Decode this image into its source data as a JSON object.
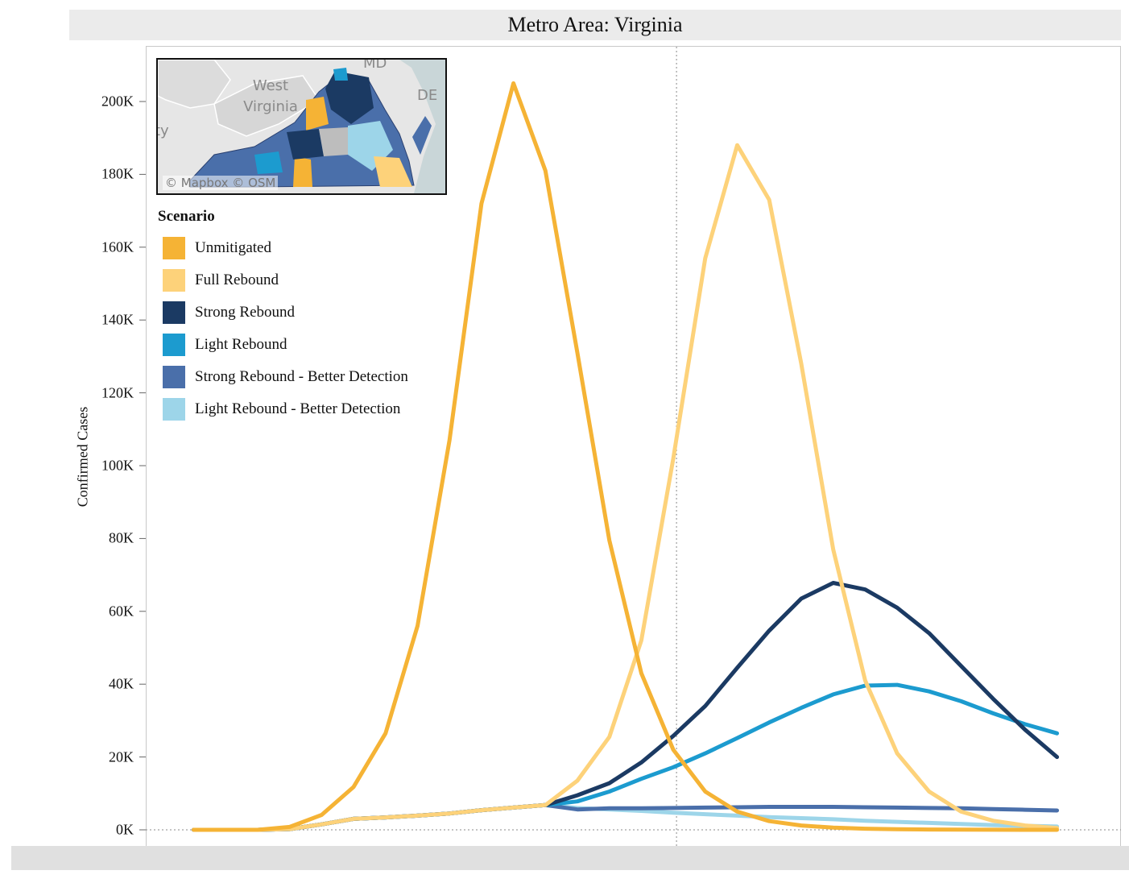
{
  "title": "Metro Area: Virginia",
  "map": {
    "credit": "© Mapbox  © OSM",
    "labels": {
      "md": "MD",
      "de": "DE",
      "wv": "West Virginia",
      "fragment": "ty"
    }
  },
  "legend": {
    "title": "Scenario",
    "items": [
      {
        "label": "Unmitigated",
        "color": "#F5B335"
      },
      {
        "label": "Full Rebound",
        "color": "#FDD27A"
      },
      {
        "label": "Strong Rebound",
        "color": "#1B3A63"
      },
      {
        "label": "Light Rebound",
        "color": "#1C9BCF"
      },
      {
        "label": "Strong Rebound - Better Detection",
        "color": "#4A6FAA"
      },
      {
        "label": "Light Rebound - Better Detection",
        "color": "#9DD5E9"
      }
    ]
  },
  "chart_data": {
    "type": "line",
    "title": "Metro Area: Virginia",
    "xlabel": "",
    "ylabel": "Confirmed Cases",
    "ylim": [
      0,
      215000
    ],
    "yticks": [
      {
        "value": 0,
        "label": "0K"
      },
      {
        "value": 20000,
        "label": "20K"
      },
      {
        "value": 40000,
        "label": "40K"
      },
      {
        "value": 60000,
        "label": "60K"
      },
      {
        "value": 80000,
        "label": "80K"
      },
      {
        "value": 100000,
        "label": "100K"
      },
      {
        "value": 120000,
        "label": "120K"
      },
      {
        "value": 140000,
        "label": "140K"
      },
      {
        "value": 160000,
        "label": "160K"
      },
      {
        "value": 180000,
        "label": "180K"
      },
      {
        "value": 200000,
        "label": "200K"
      }
    ],
    "x": [
      0,
      1,
      2,
      3,
      4,
      5,
      6,
      7,
      8,
      9,
      10,
      11,
      12,
      13,
      14,
      15,
      16,
      17,
      18,
      19,
      20,
      21,
      22,
      23,
      24,
      25,
      26,
      27
    ],
    "xlim": [
      -1.5,
      29
    ],
    "reference_line_x": 15.1,
    "series": [
      {
        "name": "Light Rebound - Better Detection",
        "color": "#9DD5E9",
        "values": [
          0,
          0,
          0,
          200,
          1500,
          3000,
          3400,
          3900,
          4500,
          5400,
          6100,
          6800,
          6000,
          5600,
          5200,
          4700,
          4300,
          3900,
          3500,
          3200,
          2900,
          2500,
          2200,
          1900,
          1600,
          1300,
          1100,
          900
        ]
      },
      {
        "name": "Strong Rebound - Better Detection",
        "color": "#4A6FAA",
        "values": [
          0,
          0,
          0,
          200,
          1500,
          3000,
          3400,
          3900,
          4500,
          5400,
          6100,
          6800,
          5600,
          5900,
          5900,
          6000,
          6100,
          6200,
          6300,
          6300,
          6300,
          6200,
          6100,
          6000,
          5900,
          5700,
          5500,
          5300
        ]
      },
      {
        "name": "Light Rebound",
        "color": "#1C9BCF",
        "values": [
          0,
          0,
          0,
          200,
          1500,
          3000,
          3400,
          3900,
          4500,
          5400,
          6100,
          6800,
          7800,
          10500,
          14000,
          17200,
          21000,
          25200,
          29500,
          33500,
          37200,
          39600,
          39800,
          38000,
          35300,
          32000,
          29000,
          26500
        ]
      },
      {
        "name": "Strong Rebound",
        "color": "#1B3A63",
        "values": [
          0,
          0,
          0,
          200,
          1500,
          3000,
          3400,
          3900,
          4500,
          5400,
          6100,
          6800,
          9500,
          12800,
          18500,
          25800,
          34000,
          44500,
          54700,
          63500,
          67800,
          66000,
          61000,
          54000,
          45000,
          36000,
          27500,
          20000
        ]
      },
      {
        "name": "Full Rebound",
        "color": "#FDD27A",
        "values": [
          0,
          0,
          0,
          200,
          1500,
          3000,
          3400,
          3900,
          4500,
          5400,
          6100,
          6800,
          13500,
          25500,
          52000,
          102000,
          157000,
          188000,
          173000,
          128000,
          77000,
          41000,
          21000,
          10500,
          5000,
          2500,
          1200,
          500
        ]
      },
      {
        "name": "Unmitigated",
        "color": "#F5B335",
        "values": [
          0,
          0,
          0,
          800,
          4100,
          11800,
          26500,
          56000,
          107000,
          172000,
          205000,
          181000,
          131000,
          79500,
          43000,
          22000,
          10500,
          5000,
          2400,
          1200,
          600,
          300,
          150,
          80,
          40,
          20,
          10,
          0
        ]
      }
    ]
  }
}
